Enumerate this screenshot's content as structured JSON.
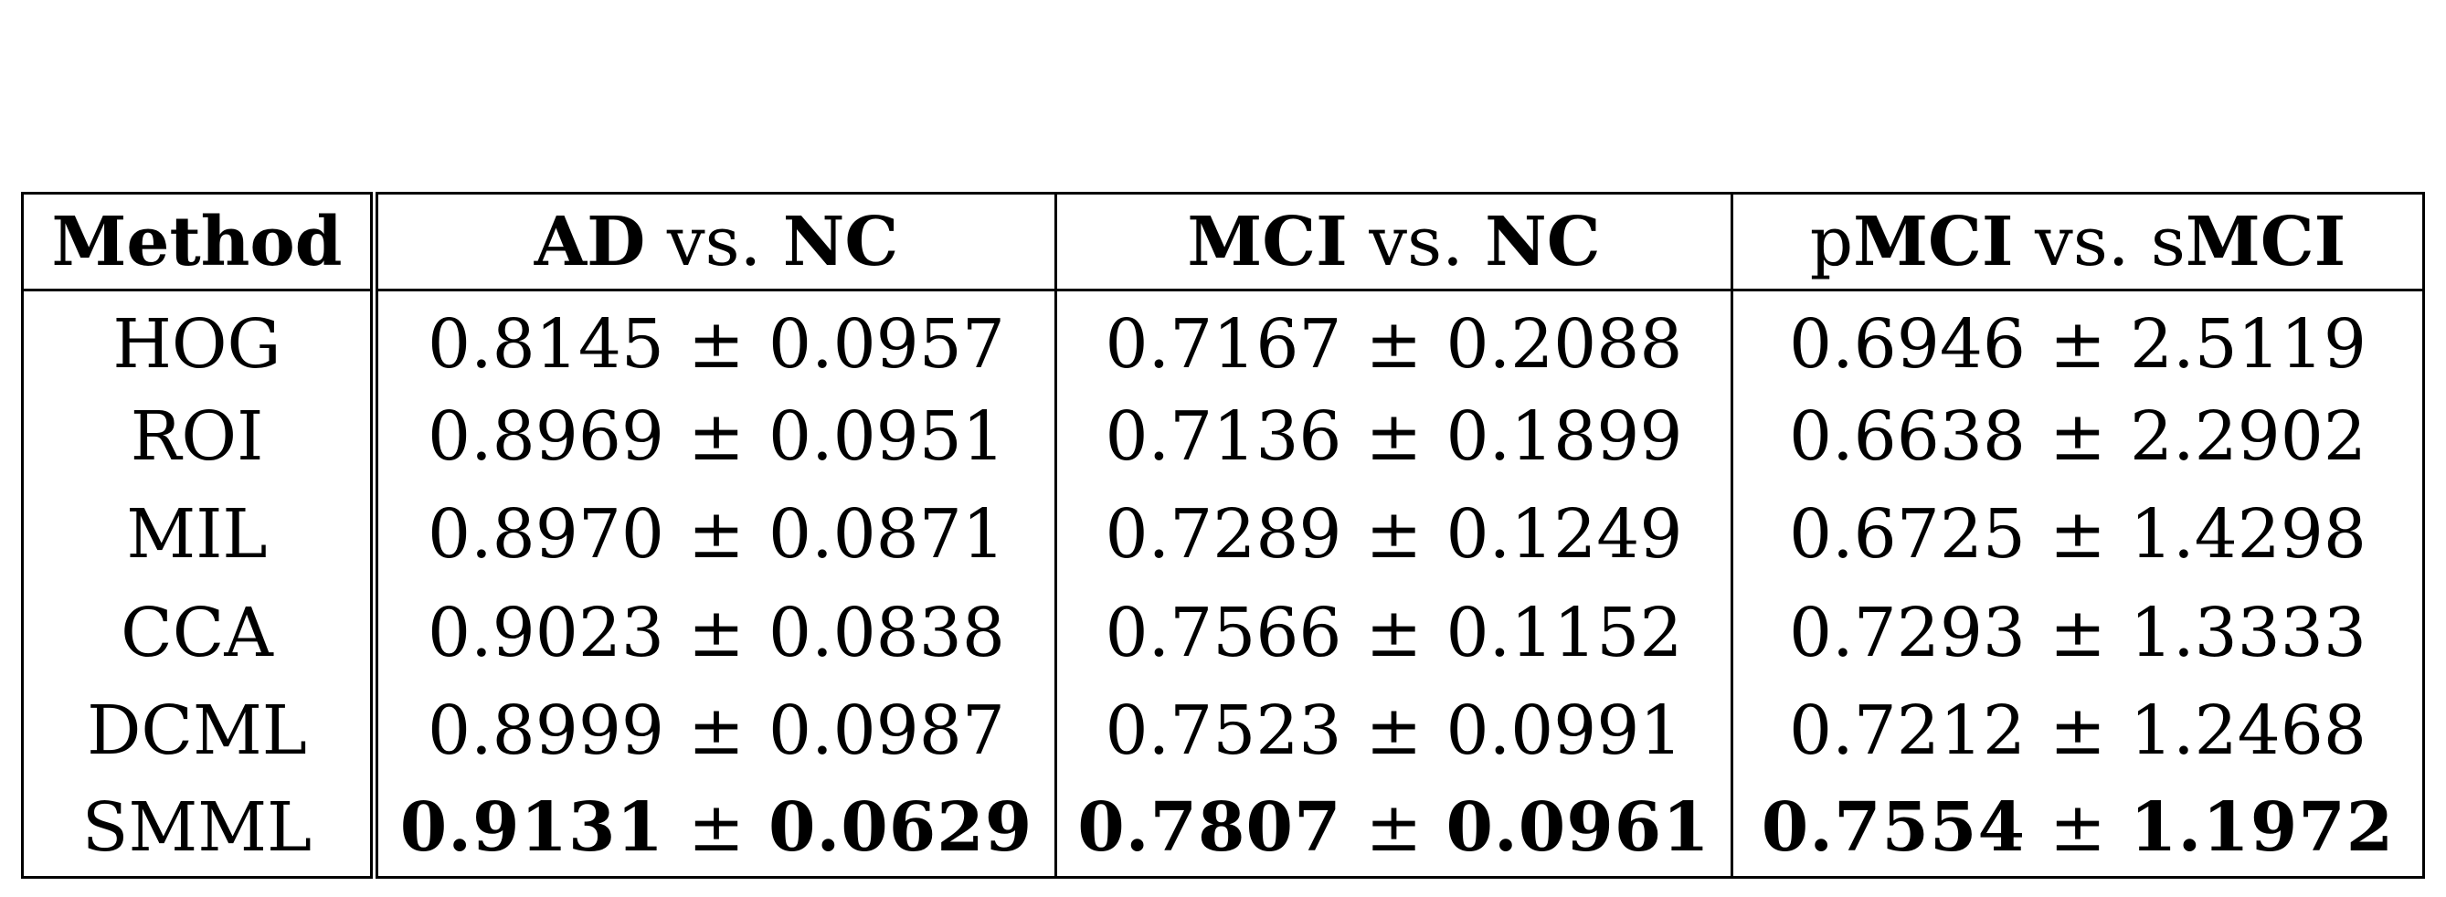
{
  "table": {
    "headers": {
      "method": "Method",
      "ad_nc": {
        "left": "AD",
        "vs": "vs.",
        "right": "NC"
      },
      "mci_nc": {
        "left": "MCI",
        "vs": "vs.",
        "right": "NC"
      },
      "pmci_smci": {
        "left_prefix": "p",
        "left": "MCI",
        "vs": "vs.",
        "right_prefix": "s",
        "right": "MCI"
      }
    },
    "pm": "±",
    "rows": [
      {
        "method": "HOG",
        "ad_nc": [
          "0.8145",
          "0.0957"
        ],
        "mci_nc": [
          "0.7167",
          "0.2088"
        ],
        "pmci_smci": [
          "0.6946",
          "2.5119"
        ]
      },
      {
        "method": "ROI",
        "ad_nc": [
          "0.8969",
          "0.0951"
        ],
        "mci_nc": [
          "0.7136",
          "0.1899"
        ],
        "pmci_smci": [
          "0.6638",
          "2.2902"
        ]
      },
      {
        "method": "MIL",
        "ad_nc": [
          "0.8970",
          "0.0871"
        ],
        "mci_nc": [
          "0.7289",
          "0.1249"
        ],
        "pmci_smci": [
          "0.6725",
          "1.4298"
        ]
      },
      {
        "method": "CCA",
        "ad_nc": [
          "0.9023",
          "0.0838"
        ],
        "mci_nc": [
          "0.7566",
          "0.1152"
        ],
        "pmci_smci": [
          "0.7293",
          "1.3333"
        ]
      },
      {
        "method": "DCML",
        "ad_nc": [
          "0.8999",
          "0.0987"
        ],
        "mci_nc": [
          "0.7523",
          "0.0991"
        ],
        "pmci_smci": [
          "0.7212",
          "1.2468"
        ]
      },
      {
        "method": "SMML",
        "ad_nc": [
          "0.9131",
          "0.0629"
        ],
        "mci_nc": [
          "0.7807",
          "0.0961"
        ],
        "pmci_smci": [
          "0.7554",
          "1.1972"
        ],
        "best": true
      }
    ]
  }
}
